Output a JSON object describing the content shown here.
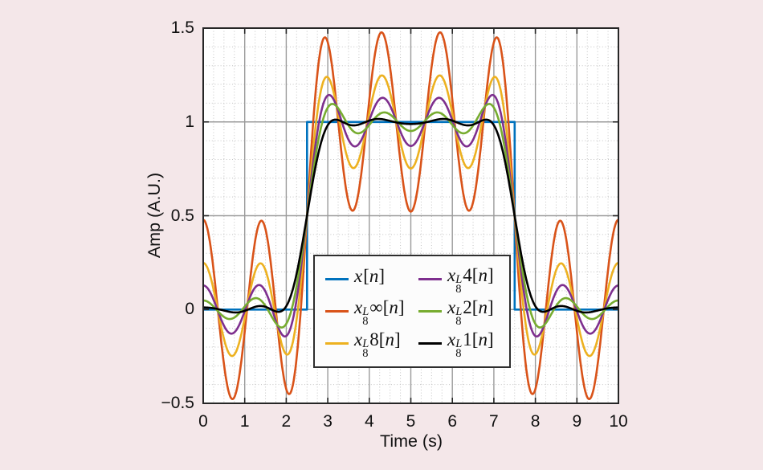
{
  "figure": {
    "background_color": "#f4e7e9"
  },
  "chart_data": {
    "type": "line",
    "title": "",
    "xlabel": "Time (s)",
    "ylabel": "Amp (A.U.)",
    "xlim": [
      0,
      10
    ],
    "ylim": [
      -0.5,
      1.5
    ],
    "x_major_ticks": [
      0,
      1,
      2,
      3,
      4,
      5,
      6,
      7,
      8,
      9,
      10
    ],
    "x_tick_labels": [
      "0",
      "1",
      "2",
      "3",
      "4",
      "5",
      "6",
      "7",
      "8",
      "9",
      "10"
    ],
    "y_major_ticks": [
      -0.5,
      0,
      0.5,
      1,
      1.5
    ],
    "y_tick_labels": [
      "−0.5",
      "0",
      "0.5",
      "1",
      "1.5"
    ],
    "x_minor_step": 0.25,
    "y_minor_step": 0.1,
    "grid": {
      "major": true,
      "minor": true
    },
    "colors": {
      "plot_background": "#ffffff",
      "axis": "#262626",
      "major_grid": "#9b9b9b",
      "minor_grid": "#c4c4c4",
      "text": "#111111"
    },
    "legend_position": "lower center",
    "series": [
      {
        "name": "x[n]",
        "color": "#0072BD",
        "kind": "step",
        "points": [
          [
            0,
            0
          ],
          [
            2.5,
            0
          ],
          [
            2.5,
            1
          ],
          [
            7.5,
            1
          ],
          [
            7.5,
            0
          ],
          [
            10,
            0
          ]
        ]
      },
      {
        "name": "x_8^L ∞[n]",
        "color": "#D95319",
        "kind": "harmonics",
        "base": 0.5,
        "center": 5,
        "half_period": 5,
        "harmonics": [
          {
            "k": 1,
            "a": 0.6366
          },
          {
            "k": 3,
            "a": -0.2122
          },
          {
            "k": 5,
            "a": 0.1273
          },
          {
            "k": 7,
            "a": -0.53
          }
        ],
        "peak": 1.48,
        "trough_inside": 0.52,
        "trough_outside": -0.48
      },
      {
        "name": "x_8^L 8[n]",
        "color": "#EDB120",
        "kind": "harmonics",
        "base": 0.5,
        "center": 5,
        "half_period": 5,
        "harmonics": [
          {
            "k": 1,
            "a": 0.6366
          },
          {
            "k": 3,
            "a": -0.2122
          },
          {
            "k": 5,
            "a": 0.1273
          },
          {
            "k": 7,
            "a": -0.3
          }
        ],
        "peak": 1.26,
        "trough_inside": 0.75,
        "trough_outside": -0.26
      },
      {
        "name": "x_8^L 4[n]",
        "color": "#7E2F8E",
        "kind": "harmonics",
        "base": 0.5,
        "center": 5,
        "half_period": 5,
        "harmonics": [
          {
            "k": 1,
            "a": 0.6366
          },
          {
            "k": 3,
            "a": -0.2122
          },
          {
            "k": 5,
            "a": 0.1273
          },
          {
            "k": 7,
            "a": -0.18
          }
        ],
        "peak": 1.16,
        "trough_inside": 0.87,
        "trough_outside": -0.14
      },
      {
        "name": "x_8^L 2[n]",
        "color": "#77AC30",
        "kind": "harmonics",
        "base": 0.5,
        "center": 5,
        "half_period": 5,
        "harmonics": [
          {
            "k": 1,
            "a": 0.6366
          },
          {
            "k": 3,
            "a": -0.2122
          },
          {
            "k": 5,
            "a": 0.1273
          },
          {
            "k": 7,
            "a": -0.1
          }
        ],
        "peak": 1.08,
        "trough_inside": 0.95,
        "trough_outside": -0.07
      },
      {
        "name": "x_8^L 1[n]",
        "color": "#000000",
        "kind": "harmonics",
        "base": 0.5,
        "center": 5,
        "half_period": 5,
        "harmonics": [
          {
            "k": 1,
            "a": 0.628
          },
          {
            "k": 3,
            "a": -0.187
          },
          {
            "k": 5,
            "a": 0.088
          },
          {
            "k": 7,
            "a": -0.055
          },
          {
            "k": 9,
            "a": 0.015
          }
        ],
        "peak": 1.01,
        "trough_inside": 0.99,
        "trough_outside": -0.04
      }
    ]
  },
  "legend": {
    "items": [
      {
        "base": "x",
        "sup": "",
        "sub": "",
        "arg": "",
        "open": "[",
        "var": "n",
        "close": "]"
      },
      {
        "base": "x",
        "sup": "L",
        "sub": "8",
        "arg": "∞",
        "open": "[",
        "var": "n",
        "close": "]"
      },
      {
        "base": "x",
        "sup": "L",
        "sub": "8",
        "arg": "8",
        "open": "[",
        "var": "n",
        "close": "]"
      },
      {
        "base": "x",
        "sup": "L",
        "sub": "8",
        "arg": "4",
        "open": "[",
        "var": "n",
        "close": "]"
      },
      {
        "base": "x",
        "sup": "L",
        "sub": "8",
        "arg": "2",
        "open": "[",
        "var": "n",
        "close": "]"
      },
      {
        "base": "x",
        "sup": "L",
        "sub": "8",
        "arg": "1",
        "open": "[",
        "var": "n",
        "close": "]"
      }
    ]
  }
}
